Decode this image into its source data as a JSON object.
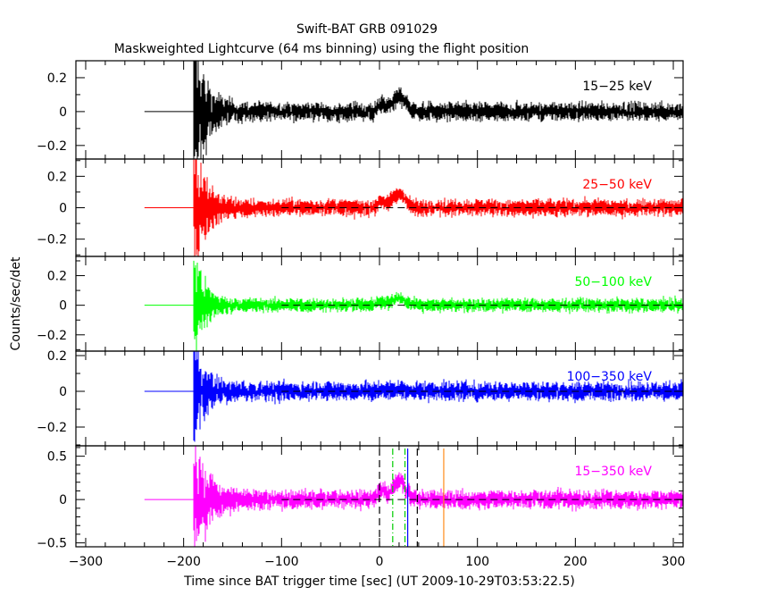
{
  "chart_data": {
    "type": "line",
    "title": "Swift-BAT GRB 091029",
    "subtitle": "Maskweighted Lightcurve (64 ms binning) using the flight position",
    "xlabel": "Time since BAT trigger time [sec] (UT 2009-10-29T03:53:22.5)",
    "ylabel": "Counts/sec/det",
    "xlim": [
      -310,
      310
    ],
    "xticks": [
      -300,
      -200,
      -100,
      0,
      100,
      200,
      300
    ],
    "xtick_labels": [
      "−300",
      "−200",
      "−100",
      "0",
      "100",
      "200",
      "300"
    ],
    "grid": false,
    "panels": [
      {
        "name": "15-25 keV",
        "label": "15−25 keV",
        "color": "#000000",
        "ylim": [
          -0.28,
          0.3
        ],
        "yticks": [
          0.2,
          0,
          -0.2
        ],
        "ytick_labels": [
          "0.2",
          "0",
          "−0.2"
        ],
        "zero_dashed": false,
        "flat_start": -240,
        "data_start": -190,
        "spike": 0.3,
        "decay": 12,
        "noise": 0.035,
        "bump": 0.09
      },
      {
        "name": "25-50 keV",
        "label": "25−50 keV",
        "color": "#ff0000",
        "ylim": [
          -0.31,
          0.31
        ],
        "yticks": [
          0.2,
          0,
          -0.2
        ],
        "ytick_labels": [
          "0.2",
          "0",
          "−0.2"
        ],
        "zero_dashed": true,
        "flat_start": -240,
        "data_start": -190,
        "spike": 0.28,
        "decay": 12,
        "noise": 0.035,
        "bump": 0.09
      },
      {
        "name": "50-100 keV",
        "label": "50−100 keV",
        "color": "#00ff00",
        "ylim": [
          -0.31,
          0.33
        ],
        "yticks": [
          0.2,
          0,
          -0.2
        ],
        "ytick_labels": [
          "0.2",
          "0",
          "−0.2"
        ],
        "zero_dashed": true,
        "flat_start": -240,
        "data_start": -190,
        "spike": 0.26,
        "decay": 10,
        "noise": 0.03,
        "bump": 0.05
      },
      {
        "name": "100-350 keV",
        "label": "100−350 keV",
        "color": "#0000ff",
        "ylim": [
          -0.305,
          0.225
        ],
        "yticks": [
          0.2,
          0,
          -0.2
        ],
        "ytick_labels": [
          "0.2",
          "0",
          "−0.2"
        ],
        "zero_dashed": true,
        "flat_start": -240,
        "data_start": -190,
        "spike": 0.22,
        "decay": 10,
        "noise": 0.035,
        "bump": 0.01
      },
      {
        "name": "15-350 keV",
        "label": "15−350 keV",
        "color": "#ff00ff",
        "ylim": [
          -0.545,
          0.62
        ],
        "yticks": [
          0.5,
          0,
          -0.5
        ],
        "ytick_labels": [
          "0.5",
          "0",
          "−0.5"
        ],
        "zero_dashed": true,
        "flat_start": -240,
        "data_start": -190,
        "spike": 0.55,
        "decay": 12,
        "noise": 0.07,
        "bump": 0.22
      }
    ],
    "markers": [
      {
        "x": 0,
        "color": "#000000",
        "style": "dashed"
      },
      {
        "x": 38.6,
        "color": "#000000",
        "style": "dashed"
      },
      {
        "x": 13.5,
        "color": "#00cc00",
        "style": "dashdot"
      },
      {
        "x": 26,
        "color": "#00cc00",
        "style": "dashdot"
      },
      {
        "x": 28.8,
        "color": "#0000ff",
        "style": "solid"
      },
      {
        "x": 65.6,
        "color": "#ff8c1a",
        "style": "solid"
      }
    ]
  }
}
